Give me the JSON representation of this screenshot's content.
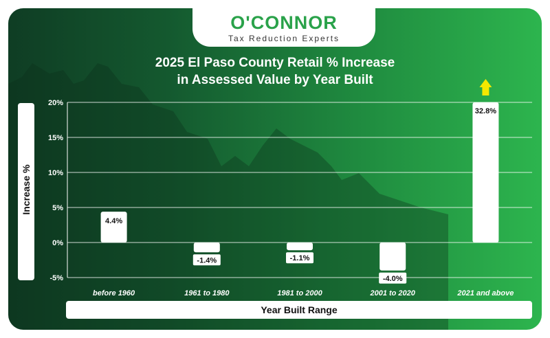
{
  "brand": {
    "name": "O'CONNOR",
    "tagline": "Tax Reduction Experts"
  },
  "colors": {
    "accent": "#2aa24a",
    "arrow": "#f5e800",
    "bar": "#ffffff",
    "grid": "#ffffff"
  },
  "chart_data": {
    "type": "bar",
    "title_line1": "2025 El Paso County Retail % Increase",
    "title_line2": "in Assessed Value by Year Built",
    "xlabel": "Year Built Range",
    "ylabel": "Increase %",
    "ylim": [
      -5,
      20
    ],
    "yticks": [
      "20%",
      "15%",
      "10%",
      "5%",
      "0%",
      "-5%"
    ],
    "ytick_values": [
      20,
      15,
      10,
      5,
      0,
      -5
    ],
    "grid": true,
    "categories": [
      "before 1960",
      "1961 to 1980",
      "1981 to 2000",
      "2001 to 2020",
      "2021 and above"
    ],
    "values": [
      4.4,
      -1.4,
      -1.1,
      -4.0,
      32.8
    ],
    "data_labels": [
      "4.4%",
      "-1.4%",
      "-1.1%",
      "-4.0%",
      "32.8%"
    ],
    "clipped_above_axis": [
      false,
      false,
      false,
      false,
      true
    ]
  }
}
